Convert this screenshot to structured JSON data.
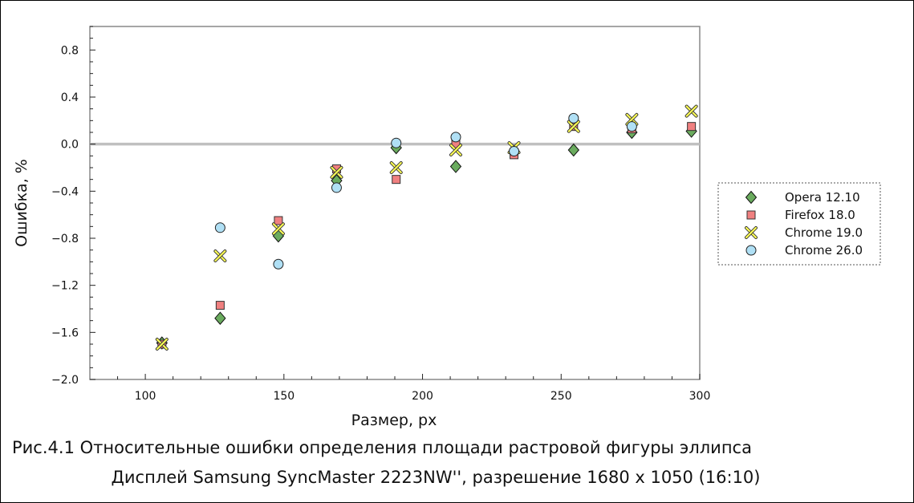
{
  "chart_data": {
    "type": "scatter",
    "xlabel": "Размер, px",
    "ylabel": "Ошибка, %",
    "xlim": [
      80,
      300
    ],
    "ylim": [
      -2.0,
      1.0
    ],
    "x_ticks": [
      "100",
      "150",
      "200",
      "250",
      "300"
    ],
    "x_tick_values": [
      100,
      150,
      200,
      250,
      300
    ],
    "y_ticks": [
      "0.8",
      "0.4",
      "0.0",
      "−0.4",
      "−0.8",
      "−1.2",
      "−1.6",
      "−2.0"
    ],
    "y_tick_values": [
      0.8,
      0.4,
      0.0,
      -0.4,
      -0.8,
      -1.2,
      -1.6,
      -2.0
    ],
    "reference_line": 0.0,
    "legend_position": "right",
    "series": [
      {
        "name": "Opera 12.10",
        "marker": "diamond",
        "color": "#6aab5e",
        "x": [
          106,
          127,
          148,
          169,
          190.5,
          212,
          233,
          254.5,
          275.5,
          297
        ],
        "y": [
          -1.69,
          -1.48,
          -0.78,
          -0.31,
          -0.03,
          -0.19,
          -0.06,
          -0.05,
          0.1,
          0.11
        ]
      },
      {
        "name": "Firefox 18.0",
        "marker": "square",
        "color": "#f08080",
        "x": [
          106,
          127,
          148,
          169,
          190.5,
          212,
          233,
          254.5,
          275.5,
          297
        ],
        "y": [
          -1.7,
          -1.37,
          -0.65,
          -0.21,
          -0.3,
          0.0,
          -0.09,
          0.15,
          0.13,
          0.15
        ]
      },
      {
        "name": "Chrome 19.0",
        "marker": "x",
        "color": "#ffff55",
        "x": [
          106,
          127,
          148,
          169,
          190.5,
          212,
          233,
          254.5,
          275.5,
          297
        ],
        "y": [
          -1.7,
          -0.95,
          -0.72,
          -0.24,
          -0.2,
          -0.05,
          -0.03,
          0.15,
          0.21,
          0.28
        ]
      },
      {
        "name": "Chrome 26.0",
        "marker": "circle",
        "color": "#b0e0f5",
        "x": [
          127,
          148,
          169,
          190.5,
          212,
          233,
          254.5,
          275.5
        ],
        "y": [
          -0.71,
          -1.02,
          -0.37,
          0.01,
          0.06,
          -0.06,
          0.22,
          0.15
        ]
      }
    ]
  },
  "caption": {
    "line1": "Рис.4.1 Относительные ошибки определения площади растровой фигуры эллипса",
    "line2": "Дисплей Samsung SyncMaster 2223NW'', разрешение 1680 x 1050 (16:10)"
  }
}
